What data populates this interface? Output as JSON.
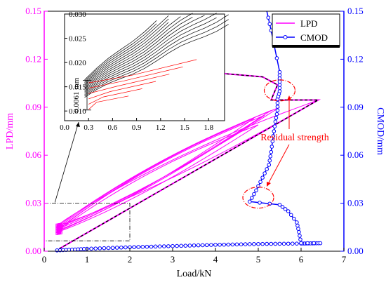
{
  "colors": {
    "lpd": "#ff00ff",
    "cmod": "#0000ff",
    "inset_loading": "#000000",
    "inset_unloading": "#ff0000",
    "annotation": "#ff0000",
    "dashed_envelope": "#000000"
  },
  "chart_data": [
    {
      "type": "line",
      "xlabel": "Load/kN",
      "ylabel_left": "LPD/mm",
      "ylabel_right": "CMOD/mm",
      "xlim": [
        0,
        7
      ],
      "ylim_left": [
        0,
        0.15
      ],
      "ylim_right": [
        0,
        0.15
      ],
      "x_ticks": [
        "0",
        "1",
        "2",
        "3",
        "4",
        "5",
        "6",
        "7"
      ],
      "y_ticks_left": [
        "0.00",
        "0.03",
        "0.06",
        "0.09",
        "0.12",
        "0.15"
      ],
      "y_ticks_right": [
        "0.00",
        "0.03",
        "0.06",
        "0.09",
        "0.12",
        "0.15"
      ],
      "legend_position": "top-right",
      "series": [
        {
          "name": "LPD",
          "axis": "left",
          "marker": "none",
          "loops": [
            {
              "peak_x": 4.9,
              "peak_y": 0.083,
              "start_y": 0.0125
            },
            {
              "peak_x": 5.0,
              "peak_y": 0.079,
              "start_y": 0.012
            },
            {
              "peak_x": 5.15,
              "peak_y": 0.085,
              "start_y": 0.013
            },
            {
              "peak_x": 5.3,
              "peak_y": 0.088,
              "start_y": 0.014
            },
            {
              "peak_x": 5.5,
              "peak_y": 0.09,
              "start_y": 0.015
            },
            {
              "peak_x": 6.4,
              "peak_y": 0.0945,
              "start_y": 0.016
            }
          ],
          "envelope": [
            [
              0.35,
              0.0015
            ],
            [
              6.4,
              0.0945
            ],
            [
              5.3,
              0.0945
            ],
            [
              5.45,
              0.104
            ],
            [
              5.1,
              0.109
            ],
            [
              4.2,
              0.111
            ],
            [
              3.5,
              0.111
            ],
            [
              3.35,
              0.118
            ],
            [
              3.2,
              0.113
            ],
            [
              2.6,
              0.113
            ],
            [
              2.45,
              0.116
            ]
          ]
        },
        {
          "name": "CMOD",
          "axis": "right",
          "marker": "open-circle",
          "points": [
            [
              0.3,
              0.0005
            ],
            [
              1.0,
              0.0015
            ],
            [
              2.0,
              0.0025
            ],
            [
              3.0,
              0.0032
            ],
            [
              4.0,
              0.004
            ],
            [
              5.0,
              0.0045
            ],
            [
              6.0,
              0.0048
            ],
            [
              6.45,
              0.005
            ],
            [
              6.0,
              0.005
            ],
            [
              5.95,
              0.012
            ],
            [
              5.9,
              0.018
            ],
            [
              5.7,
              0.025
            ],
            [
              5.5,
              0.029
            ],
            [
              4.8,
              0.031
            ],
            [
              4.95,
              0.038
            ],
            [
              5.1,
              0.046
            ],
            [
              5.25,
              0.054
            ],
            [
              5.3,
              0.062
            ],
            [
              5.35,
              0.072
            ],
            [
              5.4,
              0.081
            ],
            [
              5.45,
              0.088
            ],
            [
              5.45,
              0.095
            ],
            [
              5.5,
              0.1
            ],
            [
              5.5,
              0.106
            ],
            [
              5.5,
              0.112
            ],
            [
              5.3,
              0.138
            ],
            [
              5.2,
              0.15
            ]
          ]
        }
      ],
      "annotations": [
        {
          "text": "Residual strength"
        }
      ]
    },
    {
      "type": "line",
      "role": "inset",
      "xlim": [
        0,
        2.0
      ],
      "ylim": [
        0.008,
        0.03
      ],
      "x_ticks": [
        "0.0",
        "0.3",
        "0.6",
        "0.9",
        "1.2",
        "1.5",
        "1.8"
      ],
      "y_ticks": [
        "0.010",
        "0.015",
        "0.020",
        "0.025",
        "0.030"
      ],
      "annotations": [
        {
          "text": "0.0061 mm"
        }
      ]
    }
  ]
}
